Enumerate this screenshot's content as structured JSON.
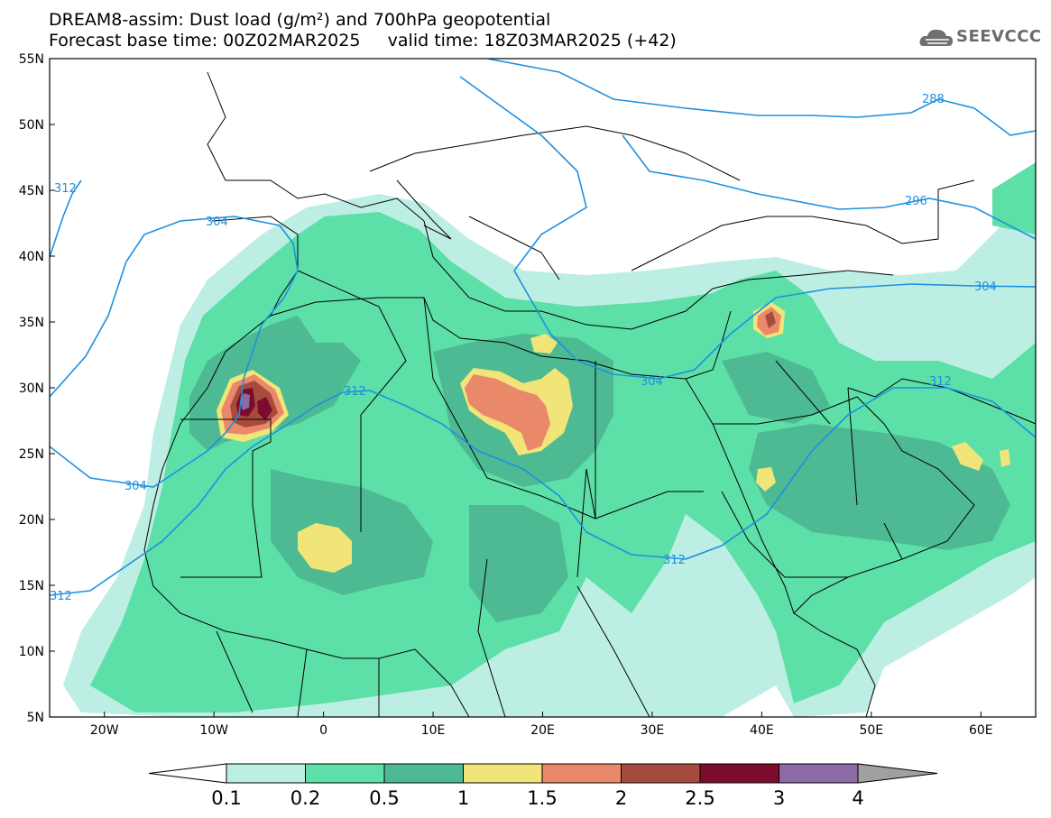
{
  "header": {
    "title_line1": "DREAM8-assim: Dust load (g/m²) and 700hPa geopotential",
    "title_line2": "Forecast base time: 00Z02MAR2025     valid time: 18Z03MAR2025 (+42)"
  },
  "logo": {
    "text": "SEEVCCC",
    "icon": "cloud-icon"
  },
  "map": {
    "lon_range": [
      -25,
      65
    ],
    "lat_range": [
      5,
      55
    ],
    "x_ticks": [
      "20W",
      "10W",
      "0",
      "10E",
      "20E",
      "30E",
      "40E",
      "50E",
      "60E"
    ],
    "y_ticks": [
      "55N",
      "50N",
      "45N",
      "40N",
      "35N",
      "30N",
      "25N",
      "20N",
      "15N",
      "10N",
      "5N"
    ],
    "contour_labels": [
      "288",
      "296",
      "304",
      "304",
      "304",
      "304",
      "312",
      "312",
      "312",
      "312",
      "312"
    ]
  },
  "colorbar": {
    "labels": [
      "0.1",
      "0.2",
      "0.5",
      "1",
      "1.5",
      "2",
      "2.5",
      "3",
      "4"
    ],
    "colors": [
      "#bdeee3",
      "#5ddfa8",
      "#4dba93",
      "#f1e57a",
      "#e9896a",
      "#a84b3f",
      "#7d0b2b",
      "#8c6aa5",
      "#a0a0a0"
    ],
    "under_color": "#ffffff"
  }
}
